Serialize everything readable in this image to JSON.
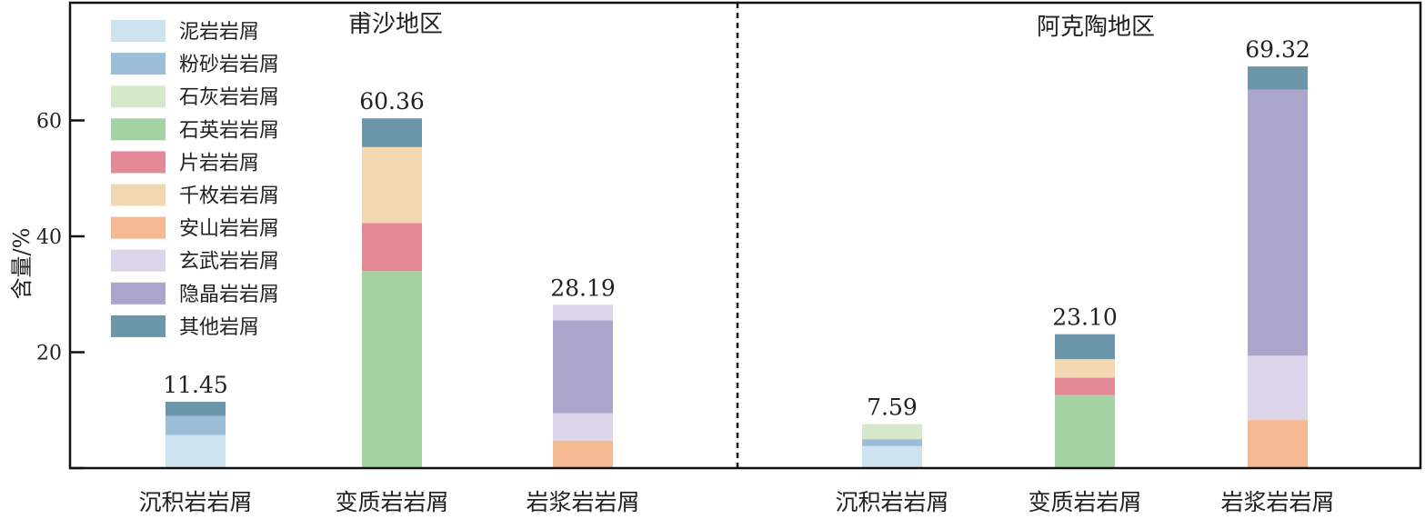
{
  "chart_data": {
    "type": "bar",
    "stacked": true,
    "ylabel": "含量/%",
    "ylim": [
      0,
      80
    ],
    "yticks": [
      20,
      40,
      60
    ],
    "grid": false,
    "legend_position": "top-left",
    "panels": [
      {
        "title": "甫沙地区",
        "bars": [
          {
            "category": "沉积岩岩屑",
            "total_label": "11.45",
            "segments": [
              {
                "series": "泥岩岩屑",
                "value": 5.7
              },
              {
                "series": "粉砂岩岩屑",
                "value": 3.3
              },
              {
                "series": "其他岩屑",
                "value": 2.45
              }
            ]
          },
          {
            "category": "变质岩岩屑",
            "total_label": "60.36",
            "segments": [
              {
                "series": "石英岩岩屑",
                "value": 34.0
              },
              {
                "series": "片岩岩屑",
                "value": 8.3
              },
              {
                "series": "千枚岩岩屑",
                "value": 13.1
              },
              {
                "series": "其他岩屑",
                "value": 4.96
              }
            ]
          },
          {
            "category": "岩浆岩岩屑",
            "total_label": "28.19",
            "segments": [
              {
                "series": "安山岩岩屑",
                "value": 4.75
              },
              {
                "series": "玄武岩岩屑",
                "value": 4.75
              },
              {
                "series": "隐晶岩岩屑",
                "value": 16.0
              },
              {
                "series": "玄武岩岩屑",
                "value": 2.69
              }
            ]
          }
        ]
      },
      {
        "title": "阿克陶地区",
        "bars": [
          {
            "category": "沉积岩岩屑",
            "total_label": "7.59",
            "segments": [
              {
                "series": "泥岩岩屑",
                "value": 3.8
              },
              {
                "series": "粉砂岩岩屑",
                "value": 1.2
              },
              {
                "series": "石灰岩岩屑",
                "value": 2.59
              }
            ]
          },
          {
            "category": "变质岩岩屑",
            "total_label": "23.10",
            "segments": [
              {
                "series": "石英岩岩屑",
                "value": 12.6
              },
              {
                "series": "片岩岩屑",
                "value": 3.0
              },
              {
                "series": "千枚岩岩屑",
                "value": 3.2
              },
              {
                "series": "其他岩屑",
                "value": 4.3
              }
            ]
          },
          {
            "category": "岩浆岩岩屑",
            "total_label": "69.32",
            "segments": [
              {
                "series": "安山岩岩屑",
                "value": 8.3
              },
              {
                "series": "玄武岩岩屑",
                "value": 11.1
              },
              {
                "series": "隐晶岩岩屑",
                "value": 45.92
              },
              {
                "series": "其他岩屑",
                "value": 4.0
              }
            ]
          }
        ]
      }
    ],
    "legend": [
      {
        "name": "泥岩岩屑",
        "color": "#cde3ef"
      },
      {
        "name": "粉砂岩岩屑",
        "color": "#9dbcd8"
      },
      {
        "name": "石灰岩岩屑",
        "color": "#d5e8c9"
      },
      {
        "name": "石英岩岩屑",
        "color": "#a3d3a3"
      },
      {
        "name": "片岩岩屑",
        "color": "#e48a97"
      },
      {
        "name": "千枚岩岩屑",
        "color": "#f3d6b2"
      },
      {
        "name": "安山岩岩屑",
        "color": "#f4b990"
      },
      {
        "name": "玄武岩岩屑",
        "color": "#dcd5ea"
      },
      {
        "name": "隐晶岩岩屑",
        "color": "#aca5cc"
      },
      {
        "name": "其他岩屑",
        "color": "#6e96aa"
      }
    ]
  }
}
